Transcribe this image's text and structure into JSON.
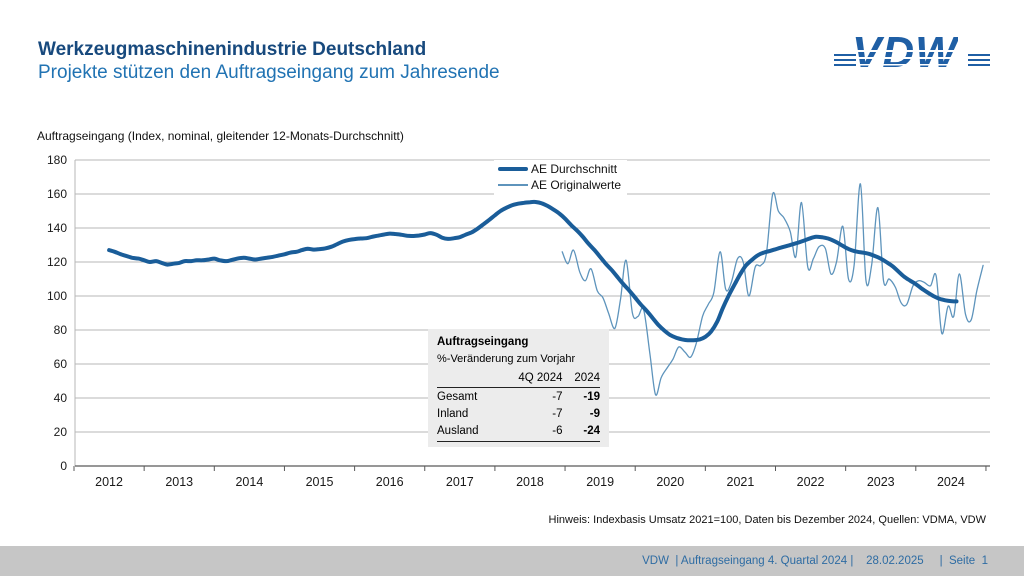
{
  "header": {
    "title": "Werkzeugmaschinenindustrie Deutschland",
    "subtitle": "Projekte stützen den Auftragseingang zum Jahresende",
    "logo_text": "VDW"
  },
  "colors": {
    "title_blue": "#17497d",
    "subtitle_blue": "#2173b3",
    "logo_blue": "#1f5fa5",
    "avg_line": "#1a5d99",
    "orig_line": "#5e94bc",
    "gridline": "#b7b7b7",
    "footer_bar": "#c6c6c6",
    "footer_text": "#2e6ca3",
    "inset_bg": "#ececec"
  },
  "chart_data": {
    "type": "line",
    "title": "Auftragseingang (Index, nominal, gleitender 12-Monats-Durchschnitt)",
    "xlabel": "",
    "ylabel": "",
    "ylim": [
      0,
      180
    ],
    "y_step": 20,
    "x_ticks": [
      2012,
      2013,
      2014,
      2015,
      2016,
      2017,
      2018,
      2019,
      2020,
      2021,
      2022,
      2023,
      2024
    ],
    "grid": true,
    "legend_position": "top-center",
    "series": [
      {
        "name": "AE Durchschnitt",
        "color": "#1a5d99",
        "width": 4,
        "points": [
          [
            2012.5,
            127
          ],
          [
            2012.58,
            126
          ],
          [
            2012.67,
            124.5
          ],
          [
            2012.75,
            123.5
          ],
          [
            2012.83,
            122.5
          ],
          [
            2012.92,
            122
          ],
          [
            2013,
            121
          ],
          [
            2013.08,
            120
          ],
          [
            2013.17,
            120.5
          ],
          [
            2013.25,
            119.5
          ],
          [
            2013.33,
            118.5
          ],
          [
            2013.42,
            119
          ],
          [
            2013.5,
            119.5
          ],
          [
            2013.58,
            120.5
          ],
          [
            2013.67,
            120.5
          ],
          [
            2013.75,
            121
          ],
          [
            2013.83,
            121
          ],
          [
            2013.92,
            121.5
          ],
          [
            2014,
            122
          ],
          [
            2014.08,
            121
          ],
          [
            2014.17,
            120.5
          ],
          [
            2014.25,
            121.2
          ],
          [
            2014.33,
            122
          ],
          [
            2014.42,
            122.5
          ],
          [
            2014.5,
            122
          ],
          [
            2014.58,
            121.5
          ],
          [
            2014.67,
            122
          ],
          [
            2014.75,
            122.5
          ],
          [
            2014.83,
            123
          ],
          [
            2014.92,
            123.8
          ],
          [
            2015,
            124.5
          ],
          [
            2015.08,
            125.5
          ],
          [
            2015.17,
            126
          ],
          [
            2015.25,
            127
          ],
          [
            2015.33,
            127.8
          ],
          [
            2015.42,
            127.3
          ],
          [
            2015.5,
            127.6
          ],
          [
            2015.58,
            128
          ],
          [
            2015.67,
            129
          ],
          [
            2015.75,
            130.5
          ],
          [
            2015.83,
            132
          ],
          [
            2015.92,
            133
          ],
          [
            2016,
            133.5
          ],
          [
            2016.08,
            133.8
          ],
          [
            2016.17,
            134
          ],
          [
            2016.25,
            134.8
          ],
          [
            2016.33,
            135.5
          ],
          [
            2016.42,
            136.2
          ],
          [
            2016.5,
            136.7
          ],
          [
            2016.58,
            136.5
          ],
          [
            2016.67,
            136
          ],
          [
            2016.75,
            135.5
          ],
          [
            2016.83,
            135.3
          ],
          [
            2016.92,
            135.6
          ],
          [
            2017,
            136.2
          ],
          [
            2017.08,
            137
          ],
          [
            2017.17,
            136
          ],
          [
            2017.25,
            134.3
          ],
          [
            2017.33,
            133.6
          ],
          [
            2017.42,
            134
          ],
          [
            2017.5,
            134.6
          ],
          [
            2017.58,
            136
          ],
          [
            2017.67,
            137.5
          ],
          [
            2017.75,
            139.5
          ],
          [
            2017.83,
            142
          ],
          [
            2017.92,
            144.8
          ],
          [
            2018,
            147.5
          ],
          [
            2018.08,
            150
          ],
          [
            2018.17,
            152
          ],
          [
            2018.25,
            153.5
          ],
          [
            2018.33,
            154.3
          ],
          [
            2018.42,
            154.8
          ],
          [
            2018.5,
            155.2
          ],
          [
            2018.58,
            155.3
          ],
          [
            2018.67,
            154.5
          ],
          [
            2018.75,
            153
          ],
          [
            2018.83,
            151
          ],
          [
            2018.92,
            148.5
          ],
          [
            2019,
            145.5
          ],
          [
            2019.08,
            142
          ],
          [
            2019.17,
            138.5
          ],
          [
            2019.25,
            135
          ],
          [
            2019.33,
            131
          ],
          [
            2019.42,
            127
          ],
          [
            2019.5,
            123
          ],
          [
            2019.58,
            119
          ],
          [
            2019.67,
            115
          ],
          [
            2019.75,
            111
          ],
          [
            2019.83,
            107
          ],
          [
            2019.92,
            103
          ],
          [
            2020,
            99
          ],
          [
            2020.08,
            95
          ],
          [
            2020.17,
            91
          ],
          [
            2020.25,
            87
          ],
          [
            2020.33,
            83
          ],
          [
            2020.42,
            79.5
          ],
          [
            2020.5,
            77
          ],
          [
            2020.58,
            75.5
          ],
          [
            2020.67,
            74.5
          ],
          [
            2020.75,
            74
          ],
          [
            2020.83,
            74
          ],
          [
            2020.92,
            74.5
          ],
          [
            2021,
            76
          ],
          [
            2021.08,
            79
          ],
          [
            2021.17,
            85
          ],
          [
            2021.25,
            93
          ],
          [
            2021.33,
            100
          ],
          [
            2021.42,
            107
          ],
          [
            2021.5,
            113
          ],
          [
            2021.58,
            118
          ],
          [
            2021.67,
            121.5
          ],
          [
            2021.75,
            124
          ],
          [
            2021.83,
            125.5
          ],
          [
            2021.92,
            126.5
          ],
          [
            2022,
            127.5
          ],
          [
            2022.08,
            128.5
          ],
          [
            2022.17,
            129.5
          ],
          [
            2022.25,
            130.5
          ],
          [
            2022.33,
            131.5
          ],
          [
            2022.42,
            132.8
          ],
          [
            2022.5,
            134
          ],
          [
            2022.58,
            134.8
          ],
          [
            2022.67,
            134.5
          ],
          [
            2022.75,
            133.8
          ],
          [
            2022.83,
            132.5
          ],
          [
            2022.92,
            130.5
          ],
          [
            2023,
            128.5
          ],
          [
            2023.08,
            127
          ],
          [
            2023.17,
            126
          ],
          [
            2023.25,
            125.5
          ],
          [
            2023.33,
            124.8
          ],
          [
            2023.42,
            123.5
          ],
          [
            2023.5,
            122
          ],
          [
            2023.58,
            120
          ],
          [
            2023.67,
            117.5
          ],
          [
            2023.75,
            114.5
          ],
          [
            2023.83,
            111.5
          ],
          [
            2023.92,
            109
          ],
          [
            2024,
            107
          ],
          [
            2024.08,
            104.5
          ],
          [
            2024.17,
            102
          ],
          [
            2024.25,
            100
          ],
          [
            2024.33,
            98.5
          ],
          [
            2024.42,
            97.5
          ],
          [
            2024.5,
            97
          ],
          [
            2024.58,
            96.8
          ]
        ]
      },
      {
        "name": "AE Originalwerte",
        "color": "#5e94bc",
        "width": 1.3,
        "points": [
          [
            2018.96,
            126
          ],
          [
            2019.04,
            119
          ],
          [
            2019.12,
            127
          ],
          [
            2019.21,
            114
          ],
          [
            2019.29,
            109
          ],
          [
            2019.37,
            116
          ],
          [
            2019.46,
            103
          ],
          [
            2019.54,
            99
          ],
          [
            2019.62,
            90
          ],
          [
            2019.71,
            81
          ],
          [
            2019.79,
            98
          ],
          [
            2019.87,
            121
          ],
          [
            2019.96,
            90
          ],
          [
            2020.04,
            88
          ],
          [
            2020.12,
            92
          ],
          [
            2020.21,
            66
          ],
          [
            2020.29,
            42
          ],
          [
            2020.37,
            52
          ],
          [
            2020.46,
            58
          ],
          [
            2020.54,
            63
          ],
          [
            2020.62,
            70
          ],
          [
            2020.71,
            67
          ],
          [
            2020.79,
            64
          ],
          [
            2020.87,
            72
          ],
          [
            2020.96,
            88
          ],
          [
            2021.04,
            95
          ],
          [
            2021.12,
            102
          ],
          [
            2021.21,
            126
          ],
          [
            2021.29,
            104
          ],
          [
            2021.37,
            108
          ],
          [
            2021.46,
            122
          ],
          [
            2021.54,
            120
          ],
          [
            2021.62,
            100
          ],
          [
            2021.71,
            117
          ],
          [
            2021.79,
            118
          ],
          [
            2021.87,
            125
          ],
          [
            2021.96,
            160
          ],
          [
            2022.04,
            150
          ],
          [
            2022.12,
            146
          ],
          [
            2022.21,
            138
          ],
          [
            2022.29,
            123
          ],
          [
            2022.37,
            155
          ],
          [
            2022.46,
            117
          ],
          [
            2022.54,
            122
          ],
          [
            2022.62,
            129
          ],
          [
            2022.71,
            128
          ],
          [
            2022.79,
            113
          ],
          [
            2022.87,
            120
          ],
          [
            2022.96,
            141
          ],
          [
            2023.04,
            110
          ],
          [
            2023.12,
            118
          ],
          [
            2023.21,
            166
          ],
          [
            2023.29,
            109
          ],
          [
            2023.37,
            118
          ],
          [
            2023.46,
            152
          ],
          [
            2023.54,
            109
          ],
          [
            2023.62,
            110
          ],
          [
            2023.71,
            105
          ],
          [
            2023.79,
            96
          ],
          [
            2023.87,
            95
          ],
          [
            2023.96,
            106
          ],
          [
            2024.04,
            109
          ],
          [
            2024.12,
            108
          ],
          [
            2024.21,
            106
          ],
          [
            2024.29,
            112
          ],
          [
            2024.37,
            78
          ],
          [
            2024.46,
            94
          ],
          [
            2024.54,
            88
          ],
          [
            2024.62,
            113
          ],
          [
            2024.71,
            89
          ],
          [
            2024.79,
            86
          ],
          [
            2024.87,
            103
          ],
          [
            2024.96,
            118
          ]
        ]
      }
    ]
  },
  "inset_table": {
    "title": "Auftragseingang",
    "subtitle": "%-Veränderung zum Vorjahr",
    "columns": [
      "",
      "4Q 2024",
      "2024"
    ],
    "rows": [
      [
        "Gesamt",
        "-7",
        "-19"
      ],
      [
        "Inland",
        "-7",
        "-9"
      ],
      [
        "Ausland",
        "-6",
        "-24"
      ]
    ]
  },
  "note": "Hinweis: Indexbasis Umsatz 2021=100, Daten bis Dezember 2024, Quellen: VDMA, VDW",
  "footer": {
    "text": "VDW  | Auftragseingang 4. Quartal 2024 |    28.02.2025     |  Seite  1"
  }
}
